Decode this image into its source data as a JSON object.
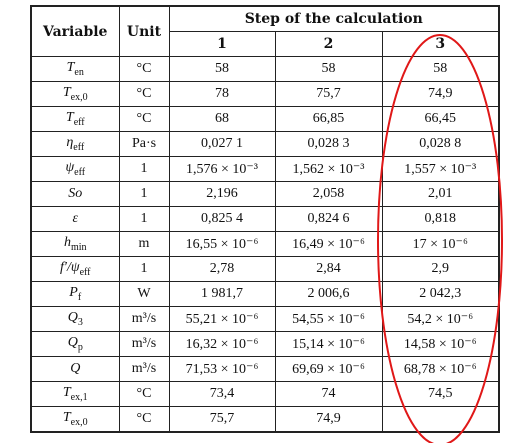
{
  "header": {
    "variable": "Variable",
    "unit": "Unit",
    "step": "Step of the calculation",
    "steps": [
      "1",
      "2",
      "3"
    ]
  },
  "table": {
    "rows": [
      {
        "var": {
          "main": "T",
          "sub": "en"
        },
        "unit": "°C",
        "values": [
          "58",
          "58",
          "58"
        ]
      },
      {
        "var": {
          "main": "T",
          "sub": "ex,0"
        },
        "unit": "°C",
        "values": [
          "78",
          "75,7",
          "74,9"
        ]
      },
      {
        "var": {
          "main": "T",
          "sub": "eff"
        },
        "unit": "°C",
        "values": [
          "68",
          "66,85",
          "66,45"
        ]
      },
      {
        "var": {
          "main": "η",
          "sub": "eff"
        },
        "unit": "Pa·s",
        "values": [
          "0,027 1",
          "0,028 3",
          "0,028 8"
        ]
      },
      {
        "var": {
          "main": "ψ",
          "sub": "eff"
        },
        "unit": "1",
        "values": [
          "1,576 × 10⁻³",
          "1,562 × 10⁻³",
          "1,557 × 10⁻³"
        ]
      },
      {
        "var": {
          "main": "So"
        },
        "unit": "1",
        "values": [
          "2,196",
          "2,058",
          "2,01"
        ]
      },
      {
        "var": {
          "main": "ε"
        },
        "unit": "1",
        "values": [
          "0,825 4",
          "0,824 6",
          "0,818"
        ]
      },
      {
        "var": {
          "main": "h",
          "sub": "min"
        },
        "unit": "m",
        "values": [
          "16,55 × 10⁻⁶",
          "16,49 × 10⁻⁶",
          "17 × 10⁻⁶"
        ]
      },
      {
        "var": {
          "main": "f′/ψ",
          "sub": "eff"
        },
        "unit": "1",
        "values": [
          "2,78",
          "2,84",
          "2,9"
        ]
      },
      {
        "var": {
          "main": "P",
          "sub": "f"
        },
        "unit": "W",
        "values": [
          "1 981,7",
          "2 006,6",
          "2 042,3"
        ]
      },
      {
        "var": {
          "main": "Q",
          "sub": "3"
        },
        "unit": "m³/s",
        "values": [
          "55,21 × 10⁻⁶",
          "54,55 × 10⁻⁶",
          "54,2 × 10⁻⁶"
        ]
      },
      {
        "var": {
          "main": "Q",
          "sub": "p"
        },
        "unit": "m³/s",
        "values": [
          "16,32 × 10⁻⁶",
          "15,14 × 10⁻⁶",
          "14,58 × 10⁻⁶"
        ]
      },
      {
        "var": {
          "main": "Q"
        },
        "unit": "m³/s",
        "values": [
          "71,53 × 10⁻⁶",
          "69,69 × 10⁻⁶",
          "68,78 × 10⁻⁶"
        ]
      },
      {
        "var": {
          "main": "T",
          "sub": "ex,1"
        },
        "unit": "°C",
        "values": [
          "73,4",
          "74",
          "74,5"
        ]
      },
      {
        "var": {
          "main": "T",
          "sub": "ex,0"
        },
        "unit": "°C",
        "values": [
          "75,7",
          "74,9",
          null
        ]
      }
    ]
  }
}
